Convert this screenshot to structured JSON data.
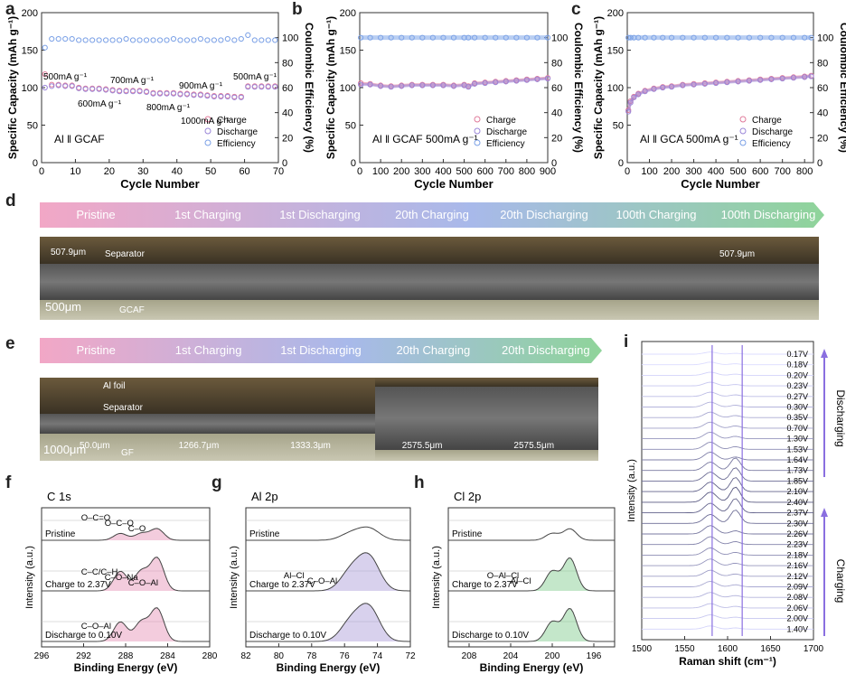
{
  "panels": {
    "a": {
      "letter": "a",
      "y_label": "Specific Capacity (mAh g⁻¹)",
      "y2_label": "Coulombic Efficiency (%)",
      "x_label": "Cycle Number",
      "cell_label": "Al ǁ GCAF",
      "x_ticks": [
        "0",
        "10",
        "20",
        "30",
        "40",
        "50",
        "60",
        "70"
      ],
      "y_ticks": [
        "0",
        "50",
        "100",
        "150",
        "200"
      ],
      "y2_ticks": [
        "0",
        "20",
        "40",
        "60",
        "80",
        "100"
      ],
      "legend": [
        "Charge",
        "Discharge",
        "Efficiency"
      ],
      "rate_labels": [
        "500mA g⁻¹",
        "600mA g⁻¹",
        "700mA g⁻¹",
        "800mA g⁻¹",
        "900mA g⁻¹",
        "1000mA g⁻¹",
        "500mA g⁻¹"
      ]
    },
    "b": {
      "letter": "b",
      "y_label": "Specific Capacity (mAh g⁻¹)",
      "y2_label": "Coulombic Efficiency (%)",
      "x_label": "Cycle Number",
      "cell_label": "Al ǁ GCAF   500mA g⁻¹",
      "x_ticks": [
        "0",
        "100",
        "200",
        "300",
        "400",
        "500",
        "600",
        "700",
        "800",
        "900"
      ],
      "y_ticks": [
        "0",
        "50",
        "100",
        "150",
        "200"
      ],
      "y2_ticks": [
        "0",
        "20",
        "40",
        "60",
        "80",
        "100"
      ],
      "legend": [
        "Charge",
        "Discharge",
        "Efficiency"
      ]
    },
    "c": {
      "letter": "c",
      "y_label": "Specific Capacity (mAh g⁻¹)",
      "y2_label": "Coulombic Efficiency (%)",
      "x_label": "Cycle Number",
      "cell_label": "Al ǁ GCA   500mA g⁻¹",
      "x_ticks": [
        "0",
        "100",
        "200",
        "300",
        "400",
        "500",
        "600",
        "700",
        "800"
      ],
      "y_ticks": [
        "0",
        "50",
        "100",
        "150",
        "200"
      ],
      "y2_ticks": [
        "0",
        "20",
        "40",
        "60",
        "80",
        "100"
      ],
      "legend": [
        "Charge",
        "Discharge",
        "Efficiency"
      ]
    },
    "d": {
      "letter": "d",
      "stages": [
        "Pristine",
        "1st Charging",
        "1st Discharging",
        "20th Charging",
        "20th Discharging",
        "100th Charging",
        "100th Discharging"
      ],
      "thickness_labels": [
        "507.9μm",
        "507.9μm"
      ],
      "scale_bar": "500μm",
      "material_labels": [
        "Separator",
        "GCAF"
      ]
    },
    "e": {
      "letter": "e",
      "stages": [
        "Pristine",
        "1st Charging",
        "1st Discharging",
        "20th Charging",
        "20th Discharging"
      ],
      "thickness_labels": [
        "50.0μm",
        "1266.7μm",
        "1333.3μm",
        "2575.5μm",
        "2575.5μm"
      ],
      "scale_bar": "1000μm",
      "material_labels": [
        "Al foil",
        "Separator",
        "GF"
      ]
    },
    "f": {
      "letter": "f",
      "title": "C 1s",
      "x_label": "Binding Energy (eV)",
      "y_label": "Intensity (a.u.)",
      "x_ticks": [
        "296",
        "292",
        "288",
        "284",
        "280",
        "",
        "",
        "",
        "",
        ""
      ],
      "x_ticks_full": [
        "296",
        "294",
        "292",
        "290",
        "288",
        "286",
        "284",
        "282",
        "280"
      ],
      "rows": [
        "Pristine",
        "Charge to 2.37V",
        "Discharge to 0.10V"
      ],
      "peak_labels": [
        "O–C=O",
        "O–C–O",
        "C–O",
        "C–C/C–H",
        "C–O–Na",
        "C–O–Al",
        "C–O–Al"
      ]
    },
    "g": {
      "letter": "g",
      "title": "Al 2p",
      "x_label": "Binding Energy (eV)",
      "y_label": "Intensity (a.u.)",
      "x_ticks_full": [
        "82",
        "80",
        "78",
        "76",
        "74",
        "72"
      ],
      "rows": [
        "Pristine",
        "Charge to 2.37V",
        "Discharge to 0.10V"
      ],
      "peak_labels": [
        "Al–Cl",
        "C–O–Al"
      ]
    },
    "h": {
      "letter": "h",
      "title": "Cl 2p",
      "x_label": "Binding Energy (eV)",
      "y_label": "Intensity (a.u.)",
      "x_ticks_full": [
        "208",
        "204",
        "200",
        "196"
      ],
      "rows": [
        "Pristine",
        "Charge to 2.37V",
        "Discharge to 0.10V"
      ],
      "peak_labels": [
        "O–Al–Cl",
        "Al–Cl"
      ]
    },
    "i": {
      "letter": "i",
      "x_label": "Raman shift (cm⁻¹)",
      "y_label": "Intensity (a.u.)",
      "x_ticks_full": [
        "1500",
        "1550",
        "1600",
        "1650",
        "1700"
      ],
      "voltages": [
        "0.17V",
        "0.18V",
        "0.20V",
        "0.23V",
        "0.27V",
        "0.30V",
        "0.35V",
        "0.70V",
        "1.30V",
        "1.53V",
        "1.64V",
        "1.73V",
        "1.85V",
        "2.10V",
        "2.40V",
        "2.37V",
        "2.30V",
        "2.26V",
        "2.23V",
        "2.18V",
        "2.16V",
        "2.12V",
        "2.09V",
        "2.08V",
        "2.06V",
        "2.00V",
        "1.40V"
      ],
      "side_labels": [
        "Discharging",
        "Charging"
      ]
    }
  },
  "colors": {
    "charge": "#e07a9a",
    "discharge": "#9a86d8",
    "efficiency": "#7aa0e6",
    "capacity_blue": "#7fa6e8",
    "banner_start": "#f2a7c6",
    "banner_mid": "#a8b9ea",
    "banner_end": "#8fd49a",
    "raman_line": "#8a6fe0"
  },
  "chart_data": [
    {
      "type": "scatter",
      "panel": "a",
      "xlabel": "Cycle Number",
      "ylabel": "Specific Capacity (mAh g⁻¹)",
      "y2label": "Coulombic Efficiency (%)",
      "xlim": [
        0,
        70
      ],
      "ylim": [
        0,
        200
      ],
      "y2lim": [
        0,
        120
      ],
      "series": [
        {
          "name": "Charge",
          "x": [
            1,
            3,
            5,
            7,
            9,
            11,
            13,
            15,
            17,
            19,
            21,
            23,
            25,
            27,
            29,
            31,
            33,
            35,
            37,
            39,
            41,
            43,
            45,
            47,
            49,
            51,
            53,
            55,
            57,
            59,
            61,
            63,
            65,
            67,
            69
          ],
          "values": [
            118,
            104,
            104,
            103,
            103,
            100,
            99,
            99,
            99,
            98,
            97,
            96,
            96,
            96,
            96,
            95,
            93,
            93,
            93,
            93,
            92,
            92,
            91,
            91,
            90,
            89,
            89,
            89,
            88,
            88,
            102,
            102,
            102,
            102,
            102
          ]
        },
        {
          "name": "Discharge",
          "x": [
            1,
            3,
            5,
            7,
            9,
            11,
            13,
            15,
            17,
            19,
            21,
            23,
            25,
            27,
            29,
            31,
            33,
            35,
            37,
            39,
            41,
            43,
            45,
            47,
            49,
            51,
            53,
            55,
            57,
            59,
            61,
            63,
            65,
            67,
            69
          ],
          "values": [
            100,
            102,
            103,
            102,
            102,
            99,
            98,
            98,
            98,
            97,
            96,
            95,
            95,
            95,
            95,
            94,
            92,
            92,
            92,
            92,
            91,
            91,
            90,
            90,
            89,
            88,
            88,
            88,
            87,
            87,
            101,
            101,
            101,
            101,
            101
          ]
        },
        {
          "name": "Efficiency",
          "x": [
            1,
            3,
            5,
            7,
            9,
            11,
            13,
            15,
            17,
            19,
            21,
            23,
            25,
            27,
            29,
            31,
            33,
            35,
            37,
            39,
            41,
            43,
            45,
            47,
            49,
            51,
            53,
            55,
            57,
            59,
            61,
            63,
            65,
            67,
            69
          ],
          "values": [
            92,
            99,
            99,
            99,
            99,
            98,
            98,
            98,
            98,
            98,
            98,
            98,
            99,
            98,
            98,
            98,
            98,
            98,
            98,
            99,
            98,
            98,
            98,
            99,
            98,
            98,
            98,
            99,
            98,
            99,
            102,
            98,
            98,
            98,
            98
          ]
        }
      ]
    },
    {
      "type": "scatter",
      "panel": "b",
      "xlabel": "Cycle Number",
      "ylabel": "Specific Capacity (mAh g⁻¹)",
      "y2label": "Coulombic Efficiency (%)",
      "xlim": [
        0,
        900
      ],
      "ylim": [
        0,
        200
      ],
      "y2lim": [
        0,
        120
      ],
      "series": [
        {
          "name": "Charge",
          "x": [
            5,
            50,
            100,
            150,
            200,
            250,
            300,
            350,
            400,
            450,
            500,
            520,
            550,
            600,
            650,
            700,
            750,
            800,
            850,
            900
          ],
          "values": [
            106,
            105,
            103,
            102,
            103,
            104,
            104,
            104,
            104,
            103,
            104,
            102,
            106,
            107,
            108,
            109,
            110,
            111,
            112,
            113
          ]
        },
        {
          "name": "Discharge",
          "x": [
            5,
            50,
            100,
            150,
            200,
            250,
            300,
            350,
            400,
            450,
            500,
            520,
            550,
            600,
            650,
            700,
            750,
            800,
            850,
            900
          ],
          "values": [
            104,
            104,
            102,
            101,
            102,
            103,
            103,
            103,
            103,
            102,
            103,
            101,
            105,
            106,
            107,
            108,
            109,
            110,
            111,
            112
          ]
        },
        {
          "name": "Efficiency",
          "x": [
            5,
            50,
            100,
            150,
            200,
            250,
            300,
            350,
            400,
            450,
            500,
            520,
            550,
            600,
            650,
            700,
            750,
            800,
            850,
            900
          ],
          "values": [
            100,
            100,
            100,
            100,
            100,
            100,
            100,
            100,
            100,
            100,
            100,
            100,
            100,
            100,
            100,
            100,
            100,
            100,
            100,
            100
          ]
        }
      ]
    },
    {
      "type": "scatter",
      "panel": "c",
      "xlabel": "Cycle Number",
      "ylabel": "Specific Capacity (mAh g⁻¹)",
      "y2label": "Coulombic Efficiency (%)",
      "xlim": [
        0,
        840
      ],
      "ylim": [
        0,
        200
      ],
      "y2lim": [
        0,
        120
      ],
      "series": [
        {
          "name": "Charge",
          "x": [
            5,
            15,
            30,
            50,
            80,
            120,
            160,
            200,
            250,
            300,
            350,
            400,
            450,
            500,
            550,
            600,
            650,
            700,
            750,
            800,
            830
          ],
          "values": [
            70,
            82,
            88,
            92,
            96,
            99,
            101,
            102,
            104,
            105,
            106,
            107,
            108,
            109,
            110,
            111,
            112,
            113,
            114,
            115,
            116
          ]
        },
        {
          "name": "Discharge",
          "x": [
            5,
            15,
            30,
            50,
            80,
            120,
            160,
            200,
            250,
            300,
            350,
            400,
            450,
            500,
            550,
            600,
            650,
            700,
            750,
            800,
            830
          ],
          "values": [
            68,
            80,
            87,
            91,
            95,
            98,
            100,
            101,
            103,
            104,
            105,
            106,
            107,
            108,
            109,
            110,
            111,
            112,
            113,
            114,
            115
          ]
        },
        {
          "name": "Efficiency",
          "x": [
            5,
            15,
            30,
            50,
            80,
            120,
            160,
            200,
            250,
            300,
            350,
            400,
            450,
            500,
            550,
            600,
            650,
            700,
            750,
            800,
            830
          ],
          "values": [
            100,
            100,
            100,
            100,
            100,
            100,
            100,
            100,
            100,
            100,
            100,
            100,
            100,
            100,
            100,
            100,
            100,
            100,
            100,
            100,
            100
          ]
        }
      ]
    }
  ]
}
